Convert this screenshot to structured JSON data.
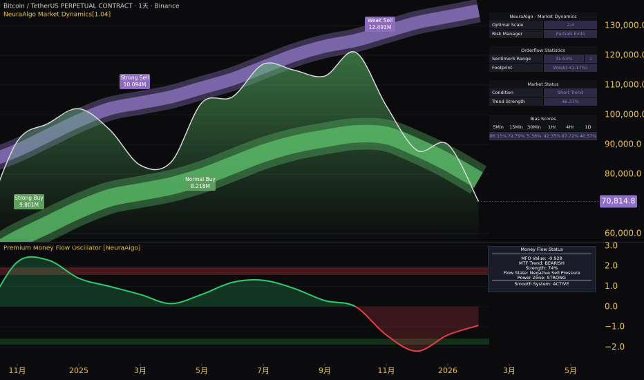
{
  "header": {
    "symbol": "Bitcoin / TetherUS PERPETUAL CONTRACT · 1天 · Binance",
    "indicator": "NeuraAlgo Market Dynamics[1.04]"
  },
  "chart_data": [
    {
      "type": "line",
      "x": [
        "2024-10",
        "2024-11",
        "2024-12",
        "2025-01",
        "2025-02",
        "2025-03",
        "2025-04",
        "2025-05",
        "2025-06",
        "2025-07",
        "2025-08",
        "2025-09",
        "2025-10",
        "2025-11",
        "2025-12",
        "2026-01",
        "2026-02"
      ],
      "xlim": [
        "2024-11",
        "2026-05"
      ],
      "series": [
        {
          "color": "#d9d9d9",
          "values": [
            66000,
            91000,
            97000,
            102000,
            95000,
            83000,
            84000,
            104000,
            106000,
            117000,
            115000,
            113000,
            121000,
            103000,
            88000,
            90000,
            70814.8
          ],
          "last_label": "70,814.8"
        },
        {
          "color": "#5cbf6a",
          "values": [
            52000,
            58000,
            63000,
            68000,
            72000,
            74000,
            76000,
            79000,
            83000,
            87000,
            90000,
            92000,
            93500,
            93000,
            89000,
            84000,
            78000
          ]
        },
        {
          "color": "#8e78c8",
          "values": [
            84000,
            88000,
            93000,
            98000,
            102000,
            104000,
            106000,
            109000,
            112000,
            116000,
            120000,
            123000,
            125000,
            128000,
            131000,
            133000,
            135000
          ]
        }
      ],
      "ylim": [
        57200,
        138600
      ],
      "yticks": [
        {
          "value": 60000,
          "label": "60,000.0"
        },
        {
          "value": 80000,
          "label": "80,000.0"
        },
        {
          "value": 90000,
          "label": "90,000.0"
        },
        {
          "value": 100000,
          "label": "100,000.0"
        },
        {
          "value": 110000,
          "label": "110,000.0"
        },
        {
          "value": 120000,
          "label": "120,000.0"
        },
        {
          "value": 130000,
          "label": "130,000.0"
        }
      ],
      "annotations": [
        {
          "text": "Strong Buy",
          "detail": "9.801M"
        },
        {
          "text": "Strong Sell",
          "detail": "10.094M"
        },
        {
          "text": "Normal Buy",
          "detail": "8.218M"
        },
        {
          "text": "Weak Sell",
          "detail": "12.491M"
        }
      ]
    },
    {
      "type": "area",
      "title": "Premium Money Flow Oscillator [NeuraAlgo]",
      "x": [
        "2024-10",
        "2024-11",
        "2024-12",
        "2025-01",
        "2025-02",
        "2025-03",
        "2025-04",
        "2025-05",
        "2025-06",
        "2025-07",
        "2025-08",
        "2025-09",
        "2025-10",
        "2025-11",
        "2025-12",
        "2026-01",
        "2026-02"
      ],
      "xlim": [
        "2024-11",
        "2026-05"
      ],
      "xticks": [
        {
          "value": "2024-11",
          "label": "11月"
        },
        {
          "value": "2025-01",
          "label": "2025"
        },
        {
          "value": "2025-03",
          "label": "3月"
        },
        {
          "value": "2025-05",
          "label": "5月"
        },
        {
          "value": "2025-07",
          "label": "7月"
        },
        {
          "value": "2025-09",
          "label": "9月"
        },
        {
          "value": "2025-11",
          "label": "11月"
        },
        {
          "value": "2026-01",
          "label": "2026"
        },
        {
          "value": "2026-03",
          "label": "3月"
        },
        {
          "value": "2026-05",
          "label": "5月"
        }
      ],
      "values": [
        -0.2,
        2.2,
        2.3,
        1.4,
        1.0,
        0.6,
        0.15,
        0.6,
        1.2,
        1.3,
        0.9,
        0.3,
        0.0,
        -1.4,
        -2.2,
        -1.4,
        -0.928
      ],
      "positive_color": "#2ecc71",
      "negative_color": "#e0404a",
      "ylim": [
        -2.77,
        3.2
      ],
      "yticks": [
        {
          "value": 3,
          "label": "3.0"
        },
        {
          "value": 2,
          "label": "2.0"
        },
        {
          "value": 1,
          "label": "1.0"
        },
        {
          "value": 0,
          "label": "0.0"
        },
        {
          "value": -1,
          "label": "−1.0"
        },
        {
          "value": -2,
          "label": "−2.0"
        }
      ]
    }
  ],
  "panels": {
    "market_dynamics": {
      "title": "NeuraAlgo - Market Dynamics",
      "rows": [
        [
          "Optimal Scale",
          "2.4"
        ],
        [
          "Risk Manager",
          "Partials Exits"
        ]
      ]
    },
    "orderflow": {
      "title": "Orderflow Statistics",
      "rows": [
        [
          "Sentiment Range",
          "31.53%",
          "↓"
        ],
        [
          "Footprint",
          "Weak(-41.17%)"
        ]
      ]
    },
    "market_status": {
      "title": "Market Status",
      "rows": [
        [
          "Condition",
          "Short Trend"
        ],
        [
          "Trend Strength",
          "46.37%"
        ]
      ]
    },
    "bias_scores": {
      "title": "Bias Scores",
      "timeframes": [
        "5Min",
        "15Min",
        "30Min",
        "1Hr",
        "4Hr",
        "1D"
      ],
      "scores": [
        "86.15%",
        "79.79%",
        "5.38%",
        "42.35%",
        "87.72%",
        "46.37%"
      ]
    },
    "money_flow": {
      "title": "Money Flow Status",
      "lines": [
        "MFO Value: -0.928",
        "MTF Trend: BEARISH",
        "Strength: 74%",
        "Flow State: Negative Sell Pressure",
        "Power Zone: STRONG"
      ],
      "footer": "Smooth System: ACTIVE"
    }
  }
}
